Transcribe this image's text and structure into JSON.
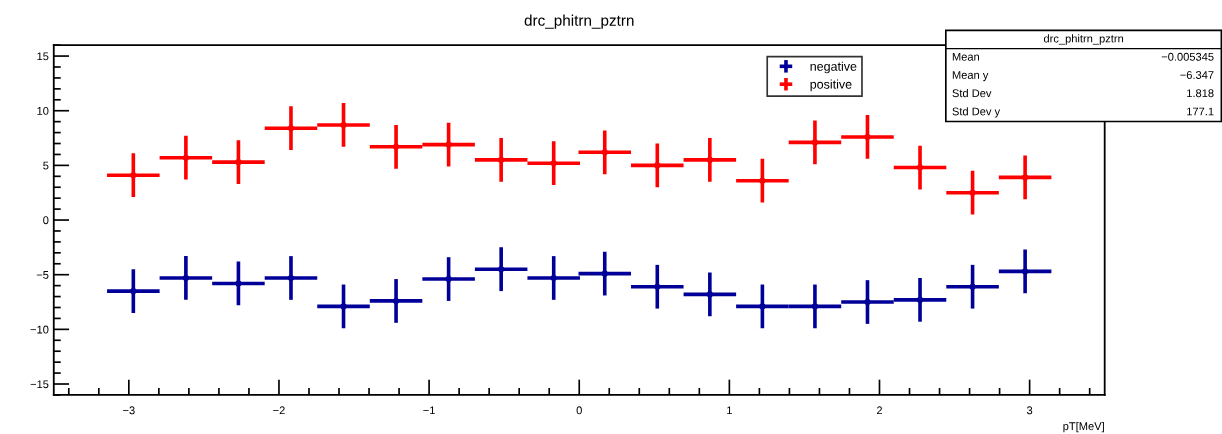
{
  "chart_data": {
    "type": "scatter",
    "title": "drc_phitrn_pztrn",
    "xlabel": "pT[MeV]",
    "x": [
      -2.97,
      -2.62,
      -2.27,
      -1.92,
      -1.57,
      -1.22,
      -0.87,
      -0.52,
      -0.17,
      0.17,
      0.52,
      0.87,
      1.22,
      1.57,
      1.92,
      2.27,
      2.62,
      2.97
    ],
    "series": [
      {
        "name": "negative",
        "color": "#000099",
        "values": [
          -6.5,
          -5.3,
          -5.8,
          -5.3,
          -7.9,
          -7.4,
          -5.4,
          -4.5,
          -5.3,
          -4.9,
          -6.1,
          -6.8,
          -7.9,
          -7.9,
          -7.5,
          -7.3,
          -6.1,
          -4.7
        ],
        "errors": [
          2.0,
          2.0,
          2.0,
          2.0,
          2.0,
          2.0,
          2.0,
          2.0,
          2.0,
          2.0,
          2.0,
          2.0,
          2.0,
          2.0,
          2.0,
          2.0,
          2.0,
          2.0
        ],
        "xerrors": [
          0.175,
          0.175,
          0.175,
          0.175,
          0.175,
          0.175,
          0.175,
          0.175,
          0.175,
          0.175,
          0.175,
          0.175,
          0.175,
          0.175,
          0.175,
          0.175,
          0.175,
          0.175
        ]
      },
      {
        "name": "positive",
        "color": "#ff0000",
        "values": [
          4.1,
          5.7,
          5.3,
          8.4,
          8.7,
          6.7,
          6.9,
          5.5,
          5.2,
          6.2,
          5.0,
          5.5,
          3.6,
          7.1,
          7.6,
          4.8,
          2.5,
          3.9
        ],
        "errors": [
          2.0,
          2.0,
          2.0,
          2.0,
          2.0,
          2.0,
          2.0,
          2.0,
          2.0,
          2.0,
          2.0,
          2.0,
          2.0,
          2.0,
          2.0,
          2.0,
          2.0,
          2.0
        ],
        "xerrors": [
          0.175,
          0.175,
          0.175,
          0.175,
          0.175,
          0.175,
          0.175,
          0.175,
          0.175,
          0.175,
          0.175,
          0.175,
          0.175,
          0.175,
          0.175,
          0.175,
          0.175,
          0.175
        ]
      }
    ],
    "xlim": [
      -3.5,
      3.5
    ],
    "xticks": [
      -3,
      -2,
      -1,
      0,
      1,
      2,
      3
    ],
    "ylim": [
      -16,
      16
    ],
    "yticks": [
      -15,
      -10,
      -5,
      0,
      5,
      10,
      15
    ],
    "grid": false,
    "legend": "top right",
    "marker": "circle",
    "annotations": [
      "drc_phitrn_pztrn",
      "Mean",
      "−0.005345",
      "Mean y",
      "−6.347",
      "Std Dev",
      "1.818",
      "Std Dev y",
      "177.1"
    ]
  }
}
